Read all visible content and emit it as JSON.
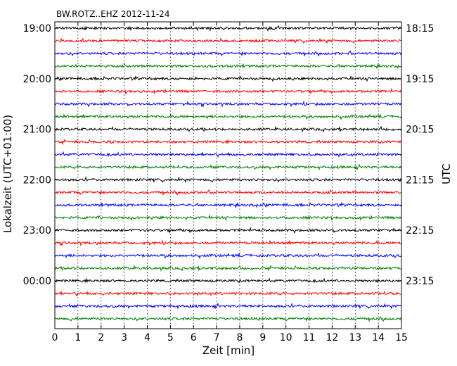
{
  "chart_data": {
    "type": "line",
    "title": "BW.ROTZ..EHZ 2012-11-24",
    "xlabel": "Zeit  [min]",
    "ylabel_left": "Lokalzeit (UTC+01:00)",
    "ylabel_right": "UTC",
    "xlim": [
      0,
      15
    ],
    "x_ticks": [
      "0",
      "1",
      "2",
      "3",
      "4",
      "5",
      "6",
      "7",
      "8",
      "9",
      "10",
      "11",
      "12",
      "13",
      "14",
      "15"
    ],
    "y_ticks_left": [
      "19:00",
      "20:00",
      "21:00",
      "22:00",
      "23:00",
      "00:00"
    ],
    "y_ticks_right": [
      "18:15",
      "19:15",
      "20:15",
      "21:15",
      "22:15",
      "23:15"
    ],
    "traces_per_hour": 4,
    "trace_count": 24,
    "minutes_per_trace": 15,
    "trace_colors": [
      "#000000",
      "#ff0000",
      "#0000ff",
      "#008000"
    ],
    "grid": "dotted vertical lines at each minute"
  }
}
